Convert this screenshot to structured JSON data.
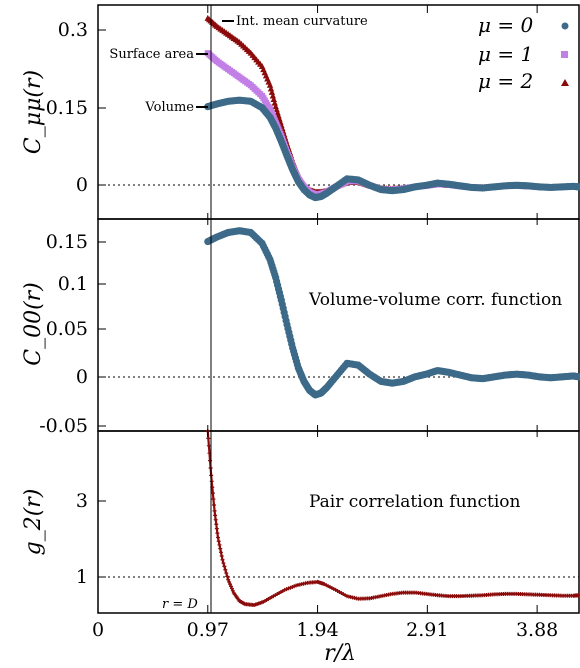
{
  "colors": {
    "mu0": "#3c6a88",
    "mu1": "#c27fe6",
    "mu2": "#8b0a0a"
  },
  "xaxis": {
    "label": "r/λ",
    "ticks": [
      0,
      0.97,
      1.94,
      2.91,
      3.88
    ],
    "tick_labels": [
      "0",
      "0.97",
      "1.94",
      "2.91",
      "3.88"
    ],
    "range": [
      0,
      4.25
    ]
  },
  "vline_label": "r = D",
  "chart_data": [
    {
      "type": "scatter",
      "ylabel": "C_μμ(r)",
      "ylim": [
        -0.06,
        0.34
      ],
      "ytick_labels": [
        "0",
        "0.15",
        "0.3"
      ],
      "legend_position": "top-right",
      "annotations": [
        "Int. mean curvature",
        "Surface area",
        "Volume"
      ],
      "series": [
        {
          "name": "μ = 0",
          "marker": "circle",
          "x": [
            0.97,
            1.05,
            1.15,
            1.25,
            1.35,
            1.45,
            1.52,
            1.57,
            1.62,
            1.67,
            1.72,
            1.77,
            1.82,
            1.87,
            1.92,
            1.97,
            2.02,
            2.1,
            2.2,
            2.3,
            2.4,
            2.5,
            2.6,
            2.7,
            2.8,
            2.9,
            3.0,
            3.1,
            3.2,
            3.3,
            3.4,
            3.5,
            3.6,
            3.7,
            3.8,
            3.9,
            4.0,
            4.1,
            4.2,
            4.25
          ],
          "y": [
            0.15,
            0.155,
            0.16,
            0.162,
            0.16,
            0.148,
            0.13,
            0.11,
            0.085,
            0.058,
            0.032,
            0.01,
            -0.005,
            -0.015,
            -0.02,
            -0.018,
            -0.012,
            0.0,
            0.015,
            0.013,
            0.003,
            -0.005,
            -0.007,
            -0.005,
            0.0,
            0.003,
            0.007,
            0.005,
            0.002,
            -0.001,
            -0.002,
            0.0,
            0.002,
            0.003,
            0.002,
            0.0,
            -0.001,
            0.0,
            0.001,
            0.0
          ]
        },
        {
          "name": "μ = 1",
          "marker": "square",
          "x": [
            0.97,
            1.05,
            1.15,
            1.25,
            1.35,
            1.45,
            1.52,
            1.57,
            1.62,
            1.67,
            1.72,
            1.77,
            1.82,
            1.87,
            1.92,
            1.97,
            2.02,
            2.1,
            2.2,
            2.3,
            2.4,
            2.5,
            2.6,
            2.7,
            2.8,
            2.9,
            3.0,
            3.1,
            3.2,
            3.3,
            3.4,
            3.5,
            3.6,
            3.7,
            3.8,
            3.9,
            4.0,
            4.1,
            4.2,
            4.25
          ],
          "y": [
            0.25,
            0.235,
            0.22,
            0.205,
            0.19,
            0.17,
            0.145,
            0.12,
            0.095,
            0.065,
            0.038,
            0.015,
            0.0,
            -0.01,
            -0.014,
            -0.013,
            -0.01,
            0.0,
            0.01,
            0.011,
            0.003,
            -0.004,
            -0.005,
            -0.003,
            0.0,
            0.002,
            0.005,
            0.004,
            0.001,
            -0.001,
            -0.002,
            0.0,
            0.002,
            0.002,
            0.001,
            0.0,
            -0.001,
            0.0,
            0.001,
            0.0
          ]
        },
        {
          "name": "μ = 2",
          "marker": "triangle",
          "x": [
            0.97,
            1.05,
            1.15,
            1.25,
            1.35,
            1.45,
            1.52,
            1.57,
            1.62,
            1.67,
            1.72,
            1.77,
            1.82,
            1.87,
            1.92,
            1.97,
            2.02,
            2.1,
            2.2,
            2.3,
            2.4,
            2.5,
            2.6,
            2.7,
            2.8,
            2.9,
            3.0,
            3.1,
            3.2,
            3.3,
            3.4,
            3.5,
            3.6,
            3.7,
            3.8,
            3.9,
            4.0,
            4.1,
            4.2,
            4.25
          ],
          "y": [
            0.315,
            0.3,
            0.285,
            0.27,
            0.25,
            0.225,
            0.19,
            0.15,
            0.115,
            0.08,
            0.048,
            0.022,
            0.004,
            -0.006,
            -0.01,
            -0.01,
            -0.008,
            0.0,
            0.008,
            0.009,
            0.002,
            -0.003,
            -0.004,
            -0.002,
            0.0,
            0.002,
            0.004,
            0.003,
            0.001,
            -0.001,
            -0.001,
            0.0,
            0.001,
            0.002,
            0.001,
            0.0,
            -0.001,
            0.0,
            0.001,
            0.0
          ]
        }
      ]
    },
    {
      "type": "scatter",
      "ylabel": "C_00(r)",
      "ylim": [
        -0.06,
        0.175
      ],
      "ytick_labels": [
        "-0.05",
        "0",
        "0.05",
        "0.1",
        "0.15"
      ],
      "panel_label": "Volume-volume corr. function",
      "series": [
        {
          "marker": "circle",
          "x": [
            0.97,
            1.05,
            1.15,
            1.25,
            1.35,
            1.45,
            1.52,
            1.57,
            1.62,
            1.67,
            1.72,
            1.77,
            1.82,
            1.87,
            1.92,
            1.97,
            2.02,
            2.1,
            2.2,
            2.3,
            2.4,
            2.5,
            2.6,
            2.7,
            2.8,
            2.9,
            3.0,
            3.1,
            3.2,
            3.3,
            3.4,
            3.5,
            3.6,
            3.7,
            3.8,
            3.9,
            4.0,
            4.1,
            4.2,
            4.25
          ],
          "y": [
            0.15,
            0.155,
            0.16,
            0.162,
            0.16,
            0.148,
            0.13,
            0.11,
            0.085,
            0.058,
            0.032,
            0.01,
            -0.005,
            -0.015,
            -0.02,
            -0.018,
            -0.012,
            0.0,
            0.015,
            0.013,
            0.003,
            -0.005,
            -0.007,
            -0.005,
            0.0,
            0.003,
            0.007,
            0.005,
            0.002,
            -0.001,
            -0.002,
            0.0,
            0.002,
            0.003,
            0.002,
            0.0,
            -0.001,
            0.0,
            0.001,
            0.0
          ]
        }
      ]
    },
    {
      "type": "line",
      "ylabel": "g_2(r)",
      "ylim": [
        0.6,
        4.7
      ],
      "ytick_labels": [
        "1",
        "3"
      ],
      "panel_label": "Pair correlation function",
      "series": [
        {
          "marker": "plus",
          "x": [
            0.97,
            1.0,
            1.03,
            1.06,
            1.1,
            1.15,
            1.2,
            1.25,
            1.3,
            1.38,
            1.46,
            1.55,
            1.65,
            1.75,
            1.85,
            1.94,
            2.0,
            2.1,
            2.2,
            2.3,
            2.4,
            2.5,
            2.6,
            2.7,
            2.8,
            2.9,
            3.0,
            3.1,
            3.2,
            3.3,
            3.4,
            3.5,
            3.6,
            3.7,
            3.8,
            3.9,
            4.0,
            4.1,
            4.2,
            4.25
          ],
          "y": [
            4.7,
            3.7,
            2.9,
            2.3,
            1.8,
            1.35,
            1.05,
            0.87,
            0.8,
            0.78,
            0.85,
            0.98,
            1.12,
            1.22,
            1.28,
            1.3,
            1.25,
            1.12,
            0.98,
            0.92,
            0.93,
            0.98,
            1.03,
            1.06,
            1.06,
            1.03,
            1.0,
            0.98,
            0.98,
            0.99,
            1.0,
            1.02,
            1.03,
            1.03,
            1.02,
            1.01,
            1.0,
            0.99,
            0.99,
            1.0
          ]
        }
      ]
    }
  ]
}
